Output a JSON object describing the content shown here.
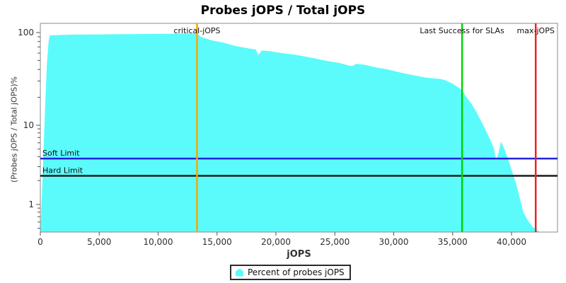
{
  "chart": {
    "title": "Probes jOPS / Total jOPS",
    "xlabel": "jOPS",
    "ylabel": "(Probes jOPS / Total jOPS)%"
  },
  "legend": {
    "label": "Percent of probes jOPS",
    "marker_color": "#5BFBFB"
  },
  "chart_data": {
    "type": "area",
    "title": "Probes jOPS / Total jOPS",
    "xlabel": "jOPS",
    "ylabel": "(Probes jOPS / Total jOPS)%",
    "x_scale": "linear",
    "y_scale": "log",
    "xlim": [
      0,
      43900
    ],
    "ylim": [
      0.45,
      115
    ],
    "x_ticks": [
      0,
      5000,
      10000,
      15000,
      20000,
      25000,
      30000,
      35000,
      40000
    ],
    "y_ticks": [
      100,
      10,
      1
    ],
    "grid": false,
    "legend_position": "bottom-center",
    "colors": {
      "area": "#5BFBFB",
      "plot_border": "#8a8a8a",
      "tick_text": "#2e2e2e",
      "label_text": "#111111"
    },
    "series": [
      {
        "name": "Percent of probes jOPS",
        "color": "#5BFBFB",
        "points": [
          [
            0,
            0.45
          ],
          [
            120,
            1.2
          ],
          [
            250,
            4
          ],
          [
            400,
            15
          ],
          [
            550,
            45
          ],
          [
            700,
            80
          ],
          [
            800,
            93
          ],
          [
            1500,
            94
          ],
          [
            3000,
            95
          ],
          [
            5000,
            95.5
          ],
          [
            7000,
            96
          ],
          [
            9000,
            96.5
          ],
          [
            11000,
            97
          ],
          [
            12500,
            97.5
          ],
          [
            13300,
            98
          ],
          [
            13600,
            90
          ],
          [
            14600,
            82
          ],
          [
            15500,
            78
          ],
          [
            16500,
            72
          ],
          [
            17800,
            67
          ],
          [
            18300,
            65.5
          ],
          [
            18500,
            57
          ],
          [
            18800,
            64
          ],
          [
            19500,
            63
          ],
          [
            20500,
            60
          ],
          [
            21500,
            58
          ],
          [
            22500,
            55
          ],
          [
            23500,
            52
          ],
          [
            24500,
            49
          ],
          [
            25400,
            47
          ],
          [
            26200,
            44
          ],
          [
            26500,
            43.5
          ],
          [
            26800,
            46
          ],
          [
            27500,
            45
          ],
          [
            28500,
            42
          ],
          [
            29500,
            40
          ],
          [
            30000,
            38.5
          ],
          [
            31000,
            36
          ],
          [
            32000,
            34
          ],
          [
            32800,
            32.5
          ],
          [
            33400,
            32
          ],
          [
            34000,
            31.5
          ],
          [
            34400,
            30.5
          ],
          [
            35000,
            28
          ],
          [
            35500,
            25.5
          ],
          [
            35800,
            23.5
          ],
          [
            36200,
            20
          ],
          [
            36600,
            17
          ],
          [
            37000,
            14
          ],
          [
            37600,
            10
          ],
          [
            38200,
            6.5
          ],
          [
            38500,
            5.1
          ],
          [
            38700,
            3.6
          ],
          [
            38900,
            4.5
          ],
          [
            39100,
            6.2
          ],
          [
            39400,
            5
          ],
          [
            39800,
            3.4
          ],
          [
            40200,
            2.2
          ],
          [
            40400,
            1.8
          ],
          [
            40700,
            1.2
          ],
          [
            41000,
            0.8
          ],
          [
            41400,
            0.62
          ],
          [
            41800,
            0.52
          ],
          [
            42300,
            0.46
          ]
        ]
      }
    ],
    "markers": {
      "vertical": [
        {
          "label": "critical-jOPS",
          "x": 13300,
          "color": "#F5A800"
        },
        {
          "label": "Last Success for SLAs",
          "x": 35800,
          "color": "#00D400"
        },
        {
          "label": "max-jOPS",
          "x": 42050,
          "color": "#EE2222"
        }
      ],
      "horizontal": [
        {
          "label": "Soft Limit",
          "y": 3.8,
          "color": "#2222DD"
        },
        {
          "label": "Hard Limit",
          "y": 2.3,
          "color": "#1a1a1a"
        }
      ]
    }
  }
}
